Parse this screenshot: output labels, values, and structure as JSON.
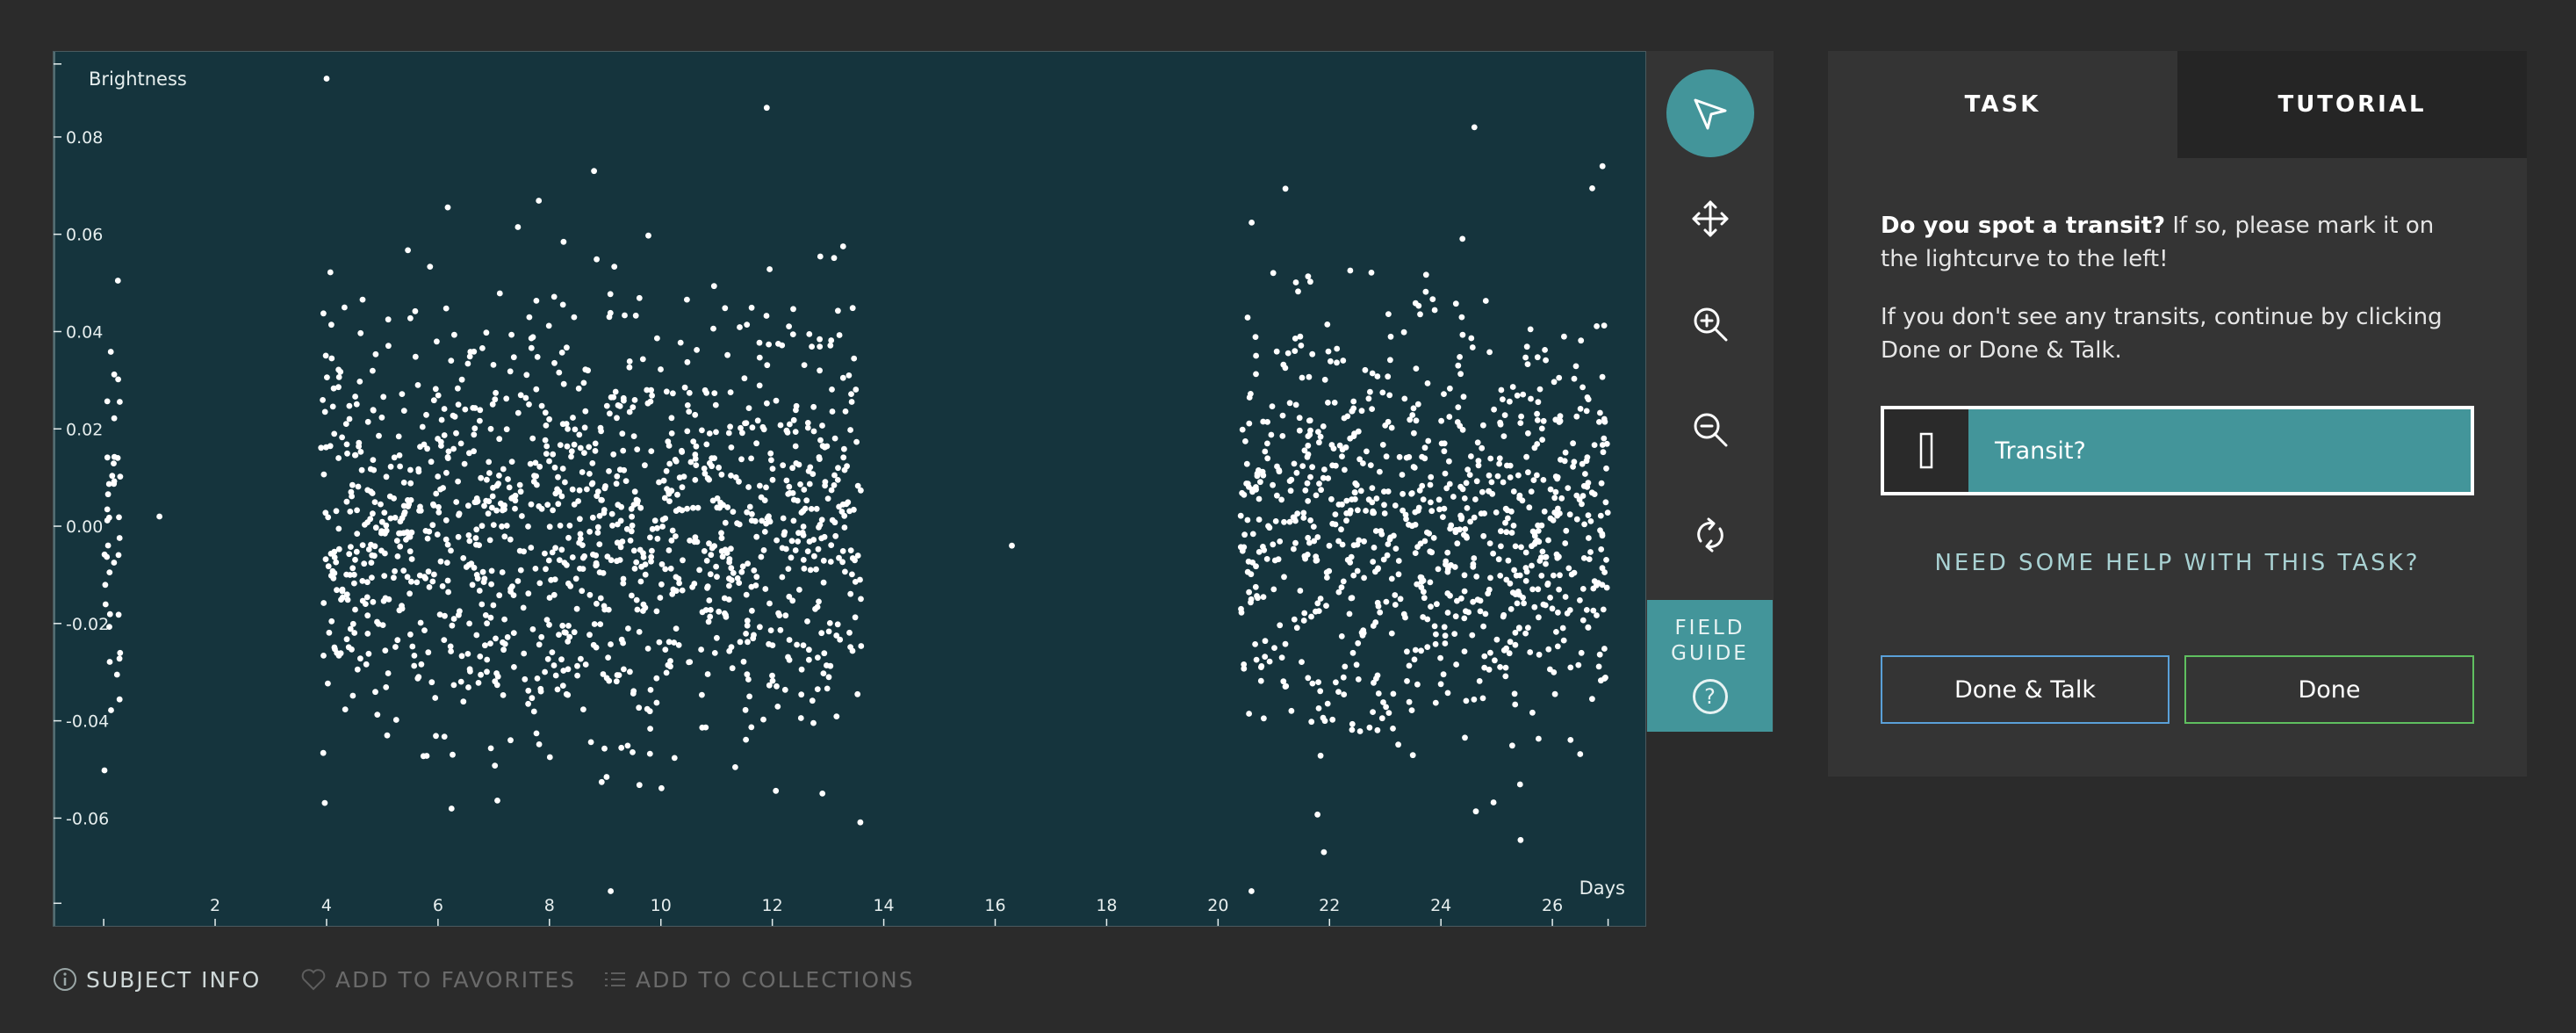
{
  "toolbar": {
    "tools": [
      "pointer-icon",
      "move-icon",
      "zoom-in-icon",
      "zoom-out-icon",
      "reset-icon"
    ],
    "field_guide_label_1": "FIELD",
    "field_guide_label_2": "GUIDE",
    "field_guide_icon": "?"
  },
  "panel": {
    "tabs": [
      {
        "label": "TASK",
        "active": true
      },
      {
        "label": "TUTORIAL",
        "active": false
      }
    ],
    "question_bold": "Do you spot a transit?",
    "question_rest": " If so, please mark it on the lightcurve to the left!",
    "instruction": "If you don't see any transits, continue by clicking Done or Done & Talk.",
    "transit_icon": "[]",
    "transit_label": "Transit?",
    "help_link": "NEED SOME HELP WITH THIS TASK?",
    "done_talk_label": "Done & Talk",
    "done_label": "Done"
  },
  "footer": {
    "subject_info": "SUBJECT INFO",
    "add_favorites": "ADD TO FAVORITES",
    "add_collections": "ADD TO COLLECTIONS"
  },
  "colors": {
    "plot_bg": "#15343d",
    "accent": "#43959a",
    "done_talk_border": "#5aa0d8",
    "done_border": "#5fbf5f"
  },
  "chart_data": {
    "type": "scatter",
    "xlabel": "Days",
    "ylabel": "Brightness",
    "xlim": [
      -0.9,
      27.7
    ],
    "ylim": [
      -0.0825,
      0.0975
    ],
    "x_ticks": [
      "2",
      "4",
      "6",
      "8",
      "10",
      "12",
      "14",
      "16",
      "18",
      "20",
      "22",
      "24",
      "26"
    ],
    "y_ticks": [
      "0.08",
      "0.06",
      "0.04",
      "0.02",
      "0.00",
      "-0.02",
      "-0.04",
      "-0.06"
    ],
    "clusters": [
      {
        "x_range": [
          0.0,
          0.3
        ],
        "y_sd": 0.025,
        "approx_points": 40
      },
      {
        "x_range": [
          3.9,
          13.6
        ],
        "y_sd": 0.022,
        "approx_points": 1250
      },
      {
        "x_range": [
          20.4,
          27.0
        ],
        "y_sd": 0.021,
        "approx_points": 850
      }
    ],
    "notable_points": [
      {
        "x": 1.0,
        "y": 0.002
      },
      {
        "x": 16.3,
        "y": -0.004
      },
      {
        "x": 4.0,
        "y": 0.092
      },
      {
        "x": 11.9,
        "y": 0.086
      },
      {
        "x": 24.6,
        "y": 0.082
      },
      {
        "x": 26.9,
        "y": 0.074
      },
      {
        "x": 9.1,
        "y": -0.075
      },
      {
        "x": 20.6,
        "y": -0.075
      },
      {
        "x": 21.9,
        "y": -0.067
      },
      {
        "x": 8.8,
        "y": 0.073
      }
    ]
  }
}
